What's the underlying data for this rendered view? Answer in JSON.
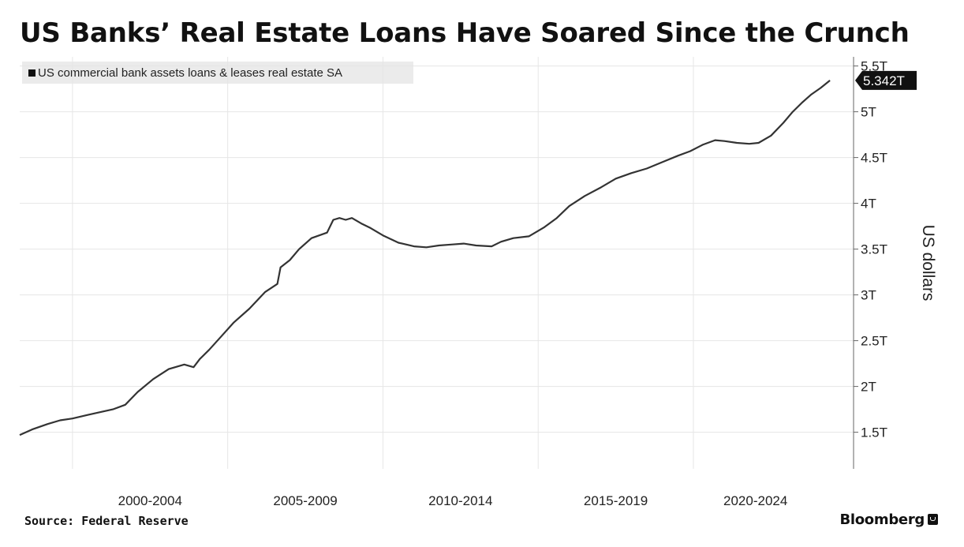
{
  "title": "US Banks’ Real Estate Loans Have Soared Since the Crunch",
  "source": "Source: Federal Reserve",
  "brand": "Bloomberg",
  "colors": {
    "line": "#333333",
    "grid": "#e6e6e6",
    "callout_bg": "#111111",
    "callout_text": "#ffffff",
    "legend_bg": "#ebebeb"
  },
  "chart_data": {
    "type": "line",
    "title": "US Banks’ Real Estate Loans Have Soared Since the Crunch",
    "ylabel": "US dollars",
    "xlabel": "",
    "legend": [
      "US commercial bank assets loans & leases real estate SA"
    ],
    "legend_position": "top-left",
    "grid": true,
    "y_axis_side": "right",
    "ylim": [
      1.1,
      5.6
    ],
    "xlim": [
      1998.3,
      2024.6
    ],
    "y_ticks": [
      1.5,
      2,
      2.5,
      3,
      3.5,
      4,
      4.5,
      5,
      5.5
    ],
    "y_tick_labels": [
      "1.5T",
      "2T",
      "2.5T",
      "3T",
      "3.5T",
      "4T",
      "4.5T",
      "5T",
      "5.5T"
    ],
    "x_categories": [
      "2000-2004",
      "2005-2009",
      "2010-2014",
      "2015-2019",
      "2020-2024"
    ],
    "x_boundaries": [
      2000,
      2005,
      2010,
      2015,
      2020
    ],
    "x_category_centers": [
      2002.5,
      2007.5,
      2012.5,
      2017.5,
      2022
    ],
    "last_value_label": "5.342T",
    "last_value": 5.342,
    "series": [
      {
        "name": "US commercial bank assets loans & leases real estate SA",
        "x": [
          1998.3,
          1998.7,
          1999.2,
          1999.6,
          2000.0,
          2000.5,
          2000.9,
          2001.3,
          2001.7,
          2002.1,
          2002.6,
          2003.1,
          2003.6,
          2003.9,
          2004.1,
          2004.4,
          2004.8,
          2005.2,
          2005.7,
          2006.2,
          2006.6,
          2006.7,
          2007.0,
          2007.3,
          2007.7,
          2008.2,
          2008.4,
          2008.6,
          2008.8,
          2009.0,
          2009.3,
          2009.6,
          2010.0,
          2010.5,
          2011.0,
          2011.4,
          2011.8,
          2012.2,
          2012.6,
          2013.0,
          2013.5,
          2013.8,
          2014.2,
          2014.7,
          2015.2,
          2015.6,
          2016.0,
          2016.5,
          2017.0,
          2017.5,
          2018.0,
          2018.5,
          2019.0,
          2019.5,
          2019.9,
          2020.3,
          2020.7,
          2021.0,
          2021.4,
          2021.8,
          2022.1,
          2022.5,
          2022.9,
          2023.2,
          2023.5,
          2023.8,
          2024.1,
          2024.4
        ],
        "values": [
          1.47,
          1.53,
          1.59,
          1.63,
          1.65,
          1.69,
          1.72,
          1.75,
          1.8,
          1.94,
          2.08,
          2.19,
          2.24,
          2.21,
          2.3,
          2.4,
          2.55,
          2.7,
          2.85,
          3.03,
          3.12,
          3.3,
          3.38,
          3.5,
          3.62,
          3.68,
          3.82,
          3.84,
          3.82,
          3.84,
          3.78,
          3.73,
          3.65,
          3.57,
          3.53,
          3.52,
          3.54,
          3.55,
          3.56,
          3.54,
          3.53,
          3.58,
          3.62,
          3.64,
          3.74,
          3.84,
          3.97,
          4.08,
          4.17,
          4.27,
          4.33,
          4.38,
          4.45,
          4.52,
          4.57,
          4.64,
          4.69,
          4.68,
          4.66,
          4.65,
          4.66,
          4.74,
          4.88,
          5.0,
          5.1,
          5.19,
          5.26,
          5.342
        ]
      }
    ]
  }
}
